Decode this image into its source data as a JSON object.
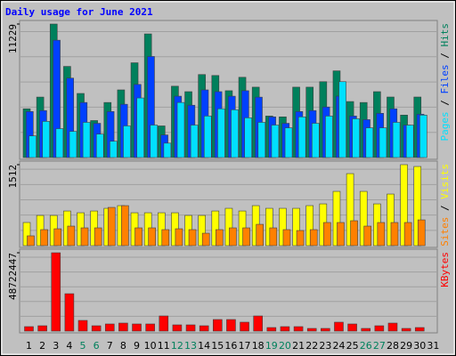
{
  "chart_data": [
    {
      "type": "bar",
      "title": "Daily usage for June 2021",
      "legend_separator": " / ",
      "ylim": [
        0,
        11229
      ],
      "yticks": [
        11229
      ],
      "series": [
        {
          "name": "Hits",
          "color": "#00805c",
          "values": [
            4100,
            5085,
            11229,
            7665,
            5390,
            3110,
            4630,
            5690,
            7970,
            10400,
            2660,
            6000,
            5540,
            6980,
            6900,
            5620,
            6750,
            5920,
            3490,
            3420,
            5920,
            5920,
            6380,
            7290,
            4710,
            4630,
            5540,
            5090,
            3570,
            5090,
            0
          ]
        },
        {
          "name": "Files",
          "color": "#0040ff",
          "values": [
            3870,
            3950,
            9870,
            6680,
            4630,
            2880,
            3870,
            4480,
            6150,
            8500,
            1900,
            5160,
            4400,
            5690,
            5540,
            5160,
            5620,
            5080,
            3420,
            2880,
            3870,
            3950,
            4250,
            5160,
            3490,
            3190,
            3720,
            4100,
            2730,
            3640,
            0
          ]
        },
        {
          "name": "Pages",
          "color": "#00e0ff",
          "values": [
            1820,
            3040,
            2430,
            2200,
            2960,
            1970,
            1370,
            2660,
            5010,
            2730,
            1210,
            4630,
            2730,
            3490,
            4100,
            4020,
            3340,
            2960,
            2730,
            2500,
            3420,
            2880,
            3490,
            6380,
            3260,
            2500,
            2500,
            2960,
            2730,
            3570,
            0
          ]
        }
      ]
    },
    {
      "type": "bar",
      "legend_separator": " / ",
      "ylim": [
        0,
        1512
      ],
      "yticks": [
        1512
      ],
      "series": [
        {
          "name": "Visits",
          "color": "#ffff00",
          "values": [
            432,
            564,
            564,
            647,
            614,
            647,
            697,
            747,
            614,
            614,
            614,
            614,
            564,
            564,
            647,
            697,
            647,
            747,
            697,
            697,
            697,
            747,
            780,
            1013,
            1345,
            1013,
            780,
            963,
            1512,
            1478,
            0
          ]
        },
        {
          "name": "Sites",
          "color": "#ff8000",
          "values": [
            183,
            299,
            315,
            365,
            332,
            332,
            714,
            747,
            332,
            332,
            299,
            315,
            299,
            232,
            299,
            332,
            332,
            398,
            332,
            299,
            282,
            299,
            432,
            432,
            465,
            365,
            432,
            432,
            432,
            481,
            0
          ]
        }
      ]
    },
    {
      "type": "bar",
      "ylim": [
        0,
        48722447
      ],
      "yticks": [
        48722447
      ],
      "categories": [
        "1",
        "2",
        "3",
        "4",
        "5",
        "6",
        "7",
        "8",
        "9",
        "10",
        "11",
        "12",
        "13",
        "14",
        "15",
        "16",
        "17",
        "18",
        "19",
        "20",
        "21",
        "22",
        "23",
        "24",
        "25",
        "26",
        "27",
        "28",
        "29",
        "30",
        "31"
      ],
      "category_colors": [
        "#000",
        "#000",
        "#000",
        "#000",
        "#00805c",
        "#00805c",
        "#000",
        "#000",
        "#000",
        "#000",
        "#000",
        "#00805c",
        "#00805c",
        "#000",
        "#000",
        "#000",
        "#000",
        "#000",
        "#00805c",
        "#00805c",
        "#000",
        "#000",
        "#000",
        "#000",
        "#000",
        "#00805c",
        "#00805c",
        "#000",
        "#000",
        "#000",
        "#000"
      ],
      "series": [
        {
          "name": "KBytes",
          "color": "#ff0000",
          "values": [
            2770000,
            3320000,
            48722447,
            23250000,
            6640000,
            3320000,
            4430000,
            4980000,
            4430000,
            4430000,
            9410000,
            3870000,
            3870000,
            3320000,
            7200000,
            7200000,
            5540000,
            9410000,
            2210000,
            2770000,
            2770000,
            1660000,
            1660000,
            5540000,
            4430000,
            1660000,
            3320000,
            4980000,
            1660000,
            2210000,
            0
          ]
        }
      ]
    }
  ]
}
